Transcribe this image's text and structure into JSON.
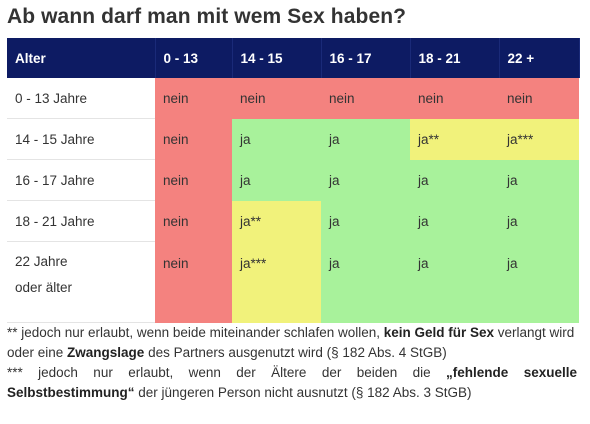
{
  "title": "Ab wann darf man mit wem Sex haben?",
  "table": {
    "headers": [
      "Alter",
      "0 - 13",
      "14 - 15",
      "16 - 17",
      "18 - 21",
      "22 +"
    ],
    "rows": [
      {
        "label": "0 - 13 Jahre",
        "cells": [
          "nein",
          "nein",
          "nein",
          "nein",
          "nein"
        ],
        "colors": [
          "red",
          "red",
          "red",
          "red",
          "red"
        ]
      },
      {
        "label": "14 - 15 Jahre",
        "cells": [
          "nein",
          "ja",
          "ja",
          "ja**",
          "ja***"
        ],
        "colors": [
          "red",
          "green",
          "green",
          "yellow",
          "yellow"
        ]
      },
      {
        "label": "16 - 17 Jahre",
        "cells": [
          "nein",
          "ja",
          "ja",
          "ja",
          "ja"
        ],
        "colors": [
          "red",
          "green",
          "green",
          "green",
          "green"
        ]
      },
      {
        "label": "18 - 21 Jahre",
        "cells": [
          "nein",
          "ja**",
          "ja",
          "ja",
          "ja"
        ],
        "colors": [
          "red",
          "yellow",
          "green",
          "green",
          "green"
        ]
      },
      {
        "label_line1": "22 Jahre",
        "label_line2": "oder älter",
        "cells": [
          "nein",
          "ja***",
          "ja",
          "ja",
          "ja"
        ],
        "colors": [
          "red",
          "yellow",
          "green",
          "green",
          "green"
        ]
      }
    ]
  },
  "colors": {
    "header_bg": "#0d1b63",
    "nein": "#f4827f",
    "ja": "#a8f29b",
    "ja_conditional": "#f1f27b"
  },
  "notes": {
    "note1": {
      "prefix": "** jedoch nur erlaubt, wenn beide miteinander schlafen wollen, ",
      "bold1": "kein Geld für Sex",
      "mid": " verlangt wird oder eine ",
      "bold2": "Zwangslage",
      "suffix": " des Partners ausgenutzt wird (§ 182 Abs. 4 StGB)"
    },
    "note2": {
      "prefix": "*** jedoch nur erlaubt, wenn der Ältere der beiden die ",
      "bold": "„fehlende sexuelle Selbstbestimmung“",
      "suffix": " der jüngeren Person nicht ausnutzt (§ 182 Abs. 3 StGB)"
    }
  }
}
